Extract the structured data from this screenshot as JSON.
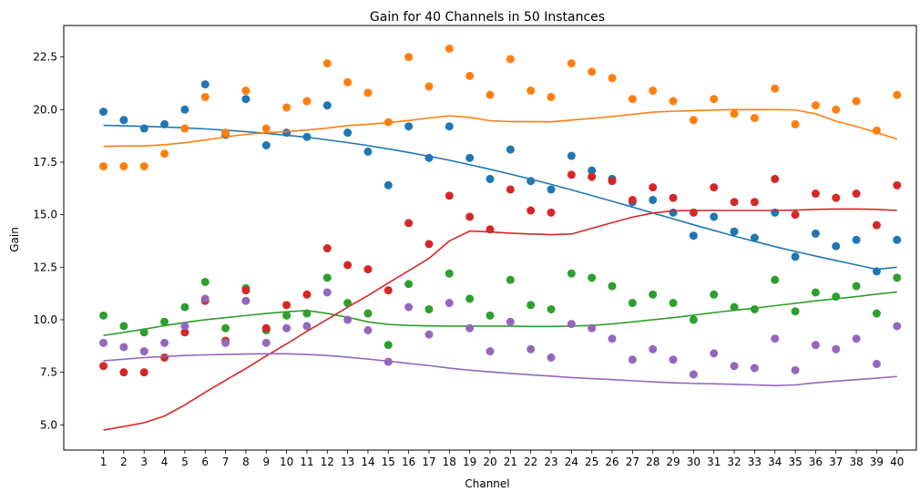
{
  "chart_data": {
    "type": "scatter",
    "title": "Gain for 40 Channels in 50 Instances",
    "xlabel": "Channel",
    "ylabel": "Gain",
    "xlim": [
      -0.95,
      40.95
    ],
    "ylim": [
      3.8,
      24.0
    ],
    "grid": false,
    "legend": "none",
    "x": [
      1,
      2,
      3,
      4,
      5,
      6,
      7,
      8,
      9,
      10,
      11,
      12,
      13,
      14,
      15,
      16,
      17,
      18,
      19,
      20,
      21,
      22,
      23,
      24,
      25,
      26,
      27,
      28,
      29,
      30,
      31,
      32,
      33,
      34,
      35,
      36,
      37,
      38,
      39,
      40
    ],
    "x_tick_labels": [
      "1",
      "2",
      "3",
      "4",
      "5",
      "6",
      "7",
      "8",
      "9",
      "10",
      "11",
      "12",
      "13",
      "14",
      "15",
      "16",
      "17",
      "18",
      "19",
      "20",
      "21",
      "22",
      "23",
      "24",
      "25",
      "26",
      "27",
      "28",
      "29",
      "30",
      "31",
      "32",
      "33",
      "34",
      "35",
      "36",
      "37",
      "38",
      "39",
      "40"
    ],
    "y_ticks": [
      5.0,
      7.5,
      10.0,
      12.5,
      15.0,
      17.5,
      20.0,
      22.5
    ],
    "y_tick_labels": [
      "5.0",
      "7.5",
      "10.0",
      "12.5",
      "15.0",
      "17.5",
      "20.0",
      "22.5"
    ],
    "series": [
      {
        "color": "#1f77b4",
        "points": [
          19.9,
          19.5,
          19.1,
          19.3,
          20.0,
          21.2,
          18.8,
          20.5,
          18.3,
          18.9,
          18.7,
          20.2,
          18.9,
          18.0,
          16.4,
          19.2,
          17.7,
          19.2,
          17.7,
          16.7,
          18.1,
          16.6,
          16.2,
          17.8,
          17.1,
          16.7,
          15.6,
          15.7,
          15.1,
          14.0,
          14.9,
          14.2,
          13.9,
          15.1,
          13.0,
          14.1,
          13.5,
          13.8,
          12.3,
          13.8
        ],
        "trend": [
          19.25,
          19.23,
          19.2,
          19.17,
          19.13,
          19.08,
          19.02,
          18.95,
          18.87,
          18.78,
          18.68,
          18.56,
          18.43,
          18.29,
          18.13,
          17.96,
          17.78,
          17.59,
          17.38,
          17.16,
          16.93,
          16.69,
          16.44,
          16.18,
          15.91,
          15.64,
          15.36,
          15.08,
          14.8,
          14.52,
          14.25,
          13.98,
          13.73,
          13.48,
          13.25,
          13.03,
          12.82,
          12.61,
          12.4,
          12.5
        ]
      },
      {
        "color": "#ff7f0e",
        "points": [
          17.3,
          17.3,
          17.3,
          17.9,
          19.1,
          20.6,
          18.9,
          20.9,
          19.1,
          20.1,
          20.4,
          22.2,
          21.3,
          20.8,
          19.4,
          22.5,
          21.1,
          22.9,
          21.6,
          20.7,
          22.4,
          20.9,
          20.6,
          22.2,
          21.8,
          21.5,
          20.5,
          20.9,
          20.4,
          19.5,
          20.5,
          19.8,
          19.6,
          21.0,
          19.3,
          20.2,
          20.0,
          20.4,
          19.0,
          20.7
        ],
        "trend": [
          18.25,
          18.27,
          18.27,
          18.33,
          18.42,
          18.55,
          18.7,
          18.82,
          18.9,
          18.95,
          19.03,
          19.12,
          19.24,
          19.3,
          19.38,
          19.48,
          19.6,
          19.7,
          19.63,
          19.47,
          19.43,
          19.43,
          19.42,
          19.5,
          19.58,
          19.67,
          19.77,
          19.88,
          19.92,
          19.95,
          19.98,
          20.0,
          20.0,
          20.0,
          19.98,
          19.8,
          19.45,
          19.2,
          18.9,
          18.6
        ]
      },
      {
        "color": "#2ca02c",
        "points": [
          10.2,
          9.7,
          9.4,
          9.9,
          10.6,
          11.8,
          9.6,
          11.5,
          9.5,
          10.2,
          10.3,
          12.0,
          10.8,
          10.3,
          8.8,
          11.7,
          10.5,
          12.2,
          11.0,
          10.2,
          11.9,
          10.7,
          10.5,
          12.2,
          12.0,
          11.6,
          10.8,
          11.2,
          10.8,
          10.0,
          11.2,
          10.6,
          10.5,
          11.9,
          10.4,
          11.3,
          11.1,
          11.6,
          10.3,
          12.0
        ],
        "trend": [
          9.25,
          9.4,
          9.55,
          9.72,
          9.87,
          10.0,
          10.1,
          10.2,
          10.3,
          10.38,
          10.44,
          10.3,
          10.12,
          9.9,
          9.78,
          9.73,
          9.71,
          9.7,
          9.7,
          9.7,
          9.7,
          9.68,
          9.68,
          9.7,
          9.73,
          9.8,
          9.9,
          10.0,
          10.1,
          10.22,
          10.34,
          10.45,
          10.55,
          10.67,
          10.78,
          10.9,
          11.0,
          11.1,
          11.22,
          11.32
        ]
      },
      {
        "color": "#d62728",
        "points": [
          7.8,
          7.5,
          7.5,
          8.2,
          9.4,
          10.9,
          9.0,
          11.4,
          9.6,
          10.7,
          11.2,
          13.4,
          12.6,
          12.4,
          11.4,
          14.6,
          13.6,
          15.9,
          14.9,
          14.3,
          16.2,
          15.2,
          15.1,
          16.9,
          16.8,
          16.6,
          15.7,
          16.3,
          15.8,
          15.1,
          16.3,
          15.6,
          15.6,
          16.7,
          15.0,
          16.0,
          15.8,
          16.0,
          14.5,
          16.4
        ],
        "trend": [
          4.75,
          4.92,
          5.1,
          5.42,
          5.95,
          6.55,
          7.12,
          7.68,
          8.28,
          8.85,
          9.45,
          10.02,
          10.6,
          11.15,
          11.75,
          12.33,
          12.92,
          13.75,
          14.22,
          14.18,
          14.12,
          14.08,
          14.05,
          14.08,
          14.35,
          14.62,
          14.88,
          15.08,
          15.18,
          15.2,
          15.2,
          15.2,
          15.2,
          15.2,
          15.22,
          15.25,
          15.27,
          15.27,
          15.25,
          15.2
        ]
      },
      {
        "color": "#9467bd",
        "points": [
          8.9,
          8.7,
          8.5,
          8.9,
          9.7,
          11.0,
          8.9,
          10.9,
          8.9,
          9.6,
          9.7,
          11.3,
          10.0,
          9.5,
          8.0,
          10.6,
          9.3,
          10.8,
          9.6,
          8.5,
          9.9,
          8.6,
          8.2,
          9.8,
          9.6,
          9.1,
          8.1,
          8.6,
          8.1,
          7.4,
          8.4,
          7.8,
          7.7,
          9.1,
          7.6,
          8.8,
          8.6,
          9.1,
          7.9,
          9.7
        ],
        "trend": [
          8.05,
          8.12,
          8.2,
          8.25,
          8.3,
          8.33,
          8.35,
          8.37,
          8.38,
          8.38,
          8.35,
          8.3,
          8.22,
          8.13,
          8.03,
          7.92,
          7.82,
          7.7,
          7.6,
          7.52,
          7.45,
          7.38,
          7.32,
          7.25,
          7.2,
          7.15,
          7.1,
          7.05,
          7.0,
          6.97,
          6.95,
          6.93,
          6.9,
          6.87,
          6.9,
          7.0,
          7.08,
          7.15,
          7.22,
          7.3
        ]
      }
    ]
  }
}
